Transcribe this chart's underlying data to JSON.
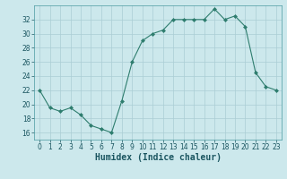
{
  "x": [
    0,
    1,
    2,
    3,
    4,
    5,
    6,
    7,
    8,
    9,
    10,
    11,
    12,
    13,
    14,
    15,
    16,
    17,
    18,
    19,
    20,
    21,
    22,
    23
  ],
  "y": [
    22,
    19.5,
    19,
    19.5,
    18.5,
    17,
    16.5,
    16,
    20.5,
    26,
    29,
    30,
    30.5,
    32,
    32,
    32,
    32,
    33.5,
    32,
    32.5,
    31,
    24.5,
    22.5,
    22
  ],
  "line_color": "#2e7d6e",
  "marker": "D",
  "marker_size": 2,
  "bg_color": "#cce8ec",
  "grid_color": "#aacdd4",
  "xlabel": "Humidex (Indice chaleur)",
  "xlim": [
    -0.5,
    23.5
  ],
  "ylim": [
    15,
    34
  ],
  "yticks": [
    16,
    18,
    20,
    22,
    24,
    26,
    28,
    30,
    32
  ],
  "xticks": [
    0,
    1,
    2,
    3,
    4,
    5,
    6,
    7,
    8,
    9,
    10,
    11,
    12,
    13,
    14,
    15,
    16,
    17,
    18,
    19,
    20,
    21,
    22,
    23
  ],
  "tick_labelsize": 5.5,
  "xlabel_fontsize": 7,
  "linewidth": 0.8
}
